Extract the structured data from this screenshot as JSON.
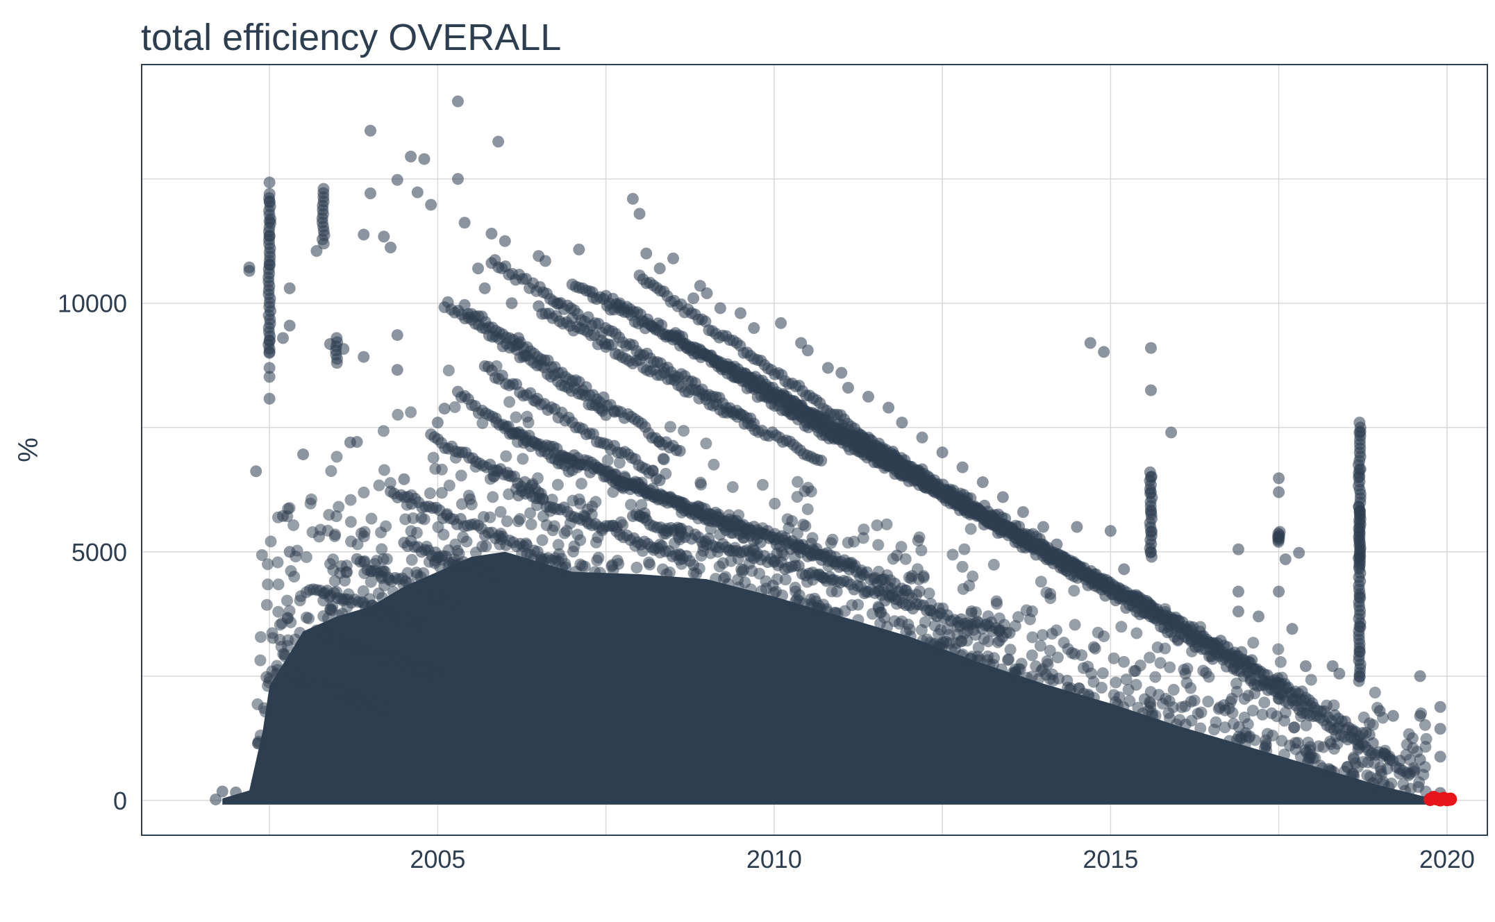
{
  "chart_data": {
    "type": "scatter",
    "title": "total efficiency OVERALL",
    "xlabel": "",
    "ylabel": "%",
    "x_ticks": [
      "2005",
      "2010",
      "2015",
      "2020"
    ],
    "y_ticks": [
      "0",
      "5000",
      "10000"
    ],
    "xlim": [
      2000.6,
      2020.6
    ],
    "ylim": [
      -700,
      14800
    ],
    "grid": true,
    "legend": "none",
    "colors": {
      "points": "#2d3e50",
      "highlight": "#e8141c",
      "grid": "#d9d9d9",
      "text": "#2d3e50"
    },
    "series": [
      {
        "values_note_excluded": true,
        "points": [
          [
            2001.7,
            20
          ],
          [
            2001.8,
            180
          ],
          [
            2002.0,
            160
          ],
          [
            2002.2,
            10650
          ],
          [
            2002.3,
            6620
          ],
          [
            2002.2,
            10720
          ],
          [
            2002.5,
            12430
          ],
          [
            2002.5,
            12050
          ],
          [
            2002.5,
            11650
          ],
          [
            2002.5,
            11350
          ],
          [
            2002.5,
            10780
          ],
          [
            2002.5,
            9240
          ],
          [
            2002.5,
            9020
          ],
          [
            2002.5,
            8700
          ],
          [
            2002.5,
            8520
          ],
          [
            2002.5,
            8080
          ],
          [
            2002.7,
            9300
          ],
          [
            2002.7,
            5720
          ],
          [
            2002.8,
            10300
          ],
          [
            2002.8,
            9550
          ],
          [
            2002.8,
            5000
          ],
          [
            2003.0,
            6960
          ],
          [
            2003.2,
            11050
          ],
          [
            2003.4,
            9180
          ],
          [
            2003.6,
            9080
          ],
          [
            2003.7,
            7200
          ],
          [
            2003.8,
            7210
          ],
          [
            2003.9,
            8920
          ],
          [
            2003.9,
            11380
          ],
          [
            2004.0,
            12210
          ],
          [
            2004.0,
            13470
          ],
          [
            2004.2,
            11340
          ],
          [
            2004.3,
            11120
          ],
          [
            2004.4,
            9360
          ],
          [
            2004.4,
            8660
          ],
          [
            2004.4,
            12480
          ],
          [
            2004.5,
            6460
          ],
          [
            2004.6,
            12950
          ],
          [
            2004.7,
            12230
          ],
          [
            2004.8,
            12900
          ],
          [
            2004.9,
            11980
          ],
          [
            2005.0,
            7600
          ],
          [
            2005.1,
            7880
          ],
          [
            2005.3,
            14060
          ],
          [
            2005.3,
            12500
          ],
          [
            2005.4,
            11620
          ],
          [
            2005.6,
            10700
          ],
          [
            2005.7,
            10300
          ],
          [
            2005.8,
            11400
          ],
          [
            2005.9,
            13250
          ],
          [
            2006.0,
            11250
          ],
          [
            2006.1,
            10000
          ],
          [
            2006.2,
            9300
          ],
          [
            2006.2,
            9180
          ],
          [
            2006.3,
            8950
          ],
          [
            2006.5,
            10950
          ],
          [
            2006.6,
            10850
          ],
          [
            2006.8,
            9990
          ],
          [
            2007.0,
            9700
          ],
          [
            2007.1,
            11080
          ],
          [
            2007.3,
            10220
          ],
          [
            2007.5,
            9120
          ],
          [
            2007.7,
            9960
          ],
          [
            2007.9,
            12100
          ],
          [
            2008.0,
            11800
          ],
          [
            2008.1,
            11000
          ],
          [
            2008.3,
            10700
          ],
          [
            2008.5,
            10900
          ],
          [
            2008.8,
            10100
          ],
          [
            2008.9,
            10350
          ],
          [
            2009.0,
            10200
          ],
          [
            2009.2,
            9900
          ],
          [
            2009.5,
            9800
          ],
          [
            2009.7,
            9500
          ],
          [
            2010.1,
            9600
          ],
          [
            2010.4,
            9200
          ],
          [
            2010.5,
            9050
          ],
          [
            2010.8,
            8700
          ],
          [
            2011.0,
            8600
          ],
          [
            2011.1,
            8300
          ],
          [
            2011.4,
            8120
          ],
          [
            2011.7,
            7900
          ],
          [
            2011.9,
            7600
          ],
          [
            2012.2,
            7300
          ],
          [
            2012.5,
            7000
          ],
          [
            2012.8,
            6700
          ],
          [
            2013.1,
            6400
          ],
          [
            2013.4,
            6100
          ],
          [
            2013.7,
            5800
          ],
          [
            2014.0,
            5500
          ],
          [
            2014.2,
            5150
          ],
          [
            2014.5,
            5500
          ],
          [
            2014.7,
            9200
          ],
          [
            2014.9,
            9020
          ],
          [
            2015.0,
            5420
          ],
          [
            2015.2,
            4650
          ],
          [
            2015.4,
            4100
          ],
          [
            2015.6,
            9100
          ],
          [
            2015.6,
            8250
          ],
          [
            2015.6,
            6500
          ],
          [
            2015.6,
            6200
          ],
          [
            2015.6,
            5800
          ],
          [
            2015.6,
            5400
          ],
          [
            2015.6,
            5000
          ],
          [
            2015.9,
            7400
          ],
          [
            2016.2,
            3200
          ],
          [
            2016.5,
            2900
          ],
          [
            2016.9,
            5050
          ],
          [
            2016.9,
            4200
          ],
          [
            2016.9,
            3800
          ],
          [
            2017.2,
            3700
          ],
          [
            2017.5,
            6480
          ],
          [
            2017.5,
            6200
          ],
          [
            2017.5,
            5300
          ],
          [
            2017.5,
            4200
          ],
          [
            2017.6,
            4850
          ],
          [
            2017.7,
            3450
          ],
          [
            2017.8,
            4980
          ],
          [
            2017.9,
            2700
          ],
          [
            2018.3,
            2700
          ],
          [
            2018.4,
            2550
          ],
          [
            2018.7,
            7600
          ],
          [
            2018.7,
            7400
          ],
          [
            2018.7,
            6650
          ],
          [
            2018.7,
            6520
          ],
          [
            2018.7,
            5800
          ],
          [
            2018.7,
            4900
          ],
          [
            2018.7,
            4100
          ],
          [
            2018.7,
            3500
          ],
          [
            2018.7,
            3000
          ],
          [
            2018.7,
            2500
          ],
          [
            2019.0,
            1800
          ],
          [
            2019.2,
            1700
          ],
          [
            2019.3,
            800
          ],
          [
            2019.6,
            2500
          ],
          [
            2019.6,
            1700
          ],
          [
            2019.6,
            820
          ],
          [
            2019.9,
            1880
          ],
          [
            2019.9,
            1440
          ],
          [
            2019.9,
            880
          ],
          [
            2019.9,
            150
          ]
        ],
        "band_edges": [
          [
            2001.8,
            40
          ],
          [
            2002.2,
            200
          ],
          [
            2002.4,
            1400
          ],
          [
            2002.5,
            2300
          ],
          [
            2003.0,
            3400
          ],
          [
            2003.5,
            3700
          ],
          [
            2004.0,
            3900
          ],
          [
            2004.5,
            4300
          ],
          [
            2005.0,
            4600
          ],
          [
            2005.5,
            4900
          ],
          [
            2006.0,
            5000
          ],
          [
            2006.5,
            4800
          ],
          [
            2007.0,
            4600
          ],
          [
            2008.0,
            4550
          ],
          [
            2009.0,
            4450
          ],
          [
            2010.0,
            4100
          ],
          [
            2011.0,
            3700
          ],
          [
            2012.0,
            3300
          ],
          [
            2013.0,
            2800
          ],
          [
            2014.0,
            2350
          ],
          [
            2015.0,
            1950
          ],
          [
            2016.0,
            1500
          ],
          [
            2017.0,
            1100
          ],
          [
            2018.0,
            700
          ],
          [
            2019.0,
            300
          ],
          [
            2019.6,
            100
          ],
          [
            2019.8,
            30
          ]
        ],
        "diagonal_streaks": [
          [
            2005.1,
            10000,
            2007.5,
            7800
          ],
          [
            2005.4,
            9900,
            2008.6,
            7000
          ],
          [
            2005.8,
            10850,
            2009.7,
            7600
          ],
          [
            2006.5,
            9900,
            2010.7,
            6800
          ],
          [
            2007.0,
            10350,
            2011.6,
            7000
          ],
          [
            2007.5,
            10100,
            2012.2,
            6600
          ],
          [
            2008.0,
            10500,
            2013.0,
            5800
          ],
          [
            2008.5,
            9300,
            2014.0,
            5200
          ],
          [
            2009.1,
            8800,
            2015.0,
            4300
          ],
          [
            2009.6,
            8300,
            2016.0,
            3600
          ],
          [
            2010.2,
            7800,
            2017.1,
            2800
          ],
          [
            2010.9,
            7400,
            2018.0,
            2000
          ],
          [
            2011.7,
            6800,
            2018.9,
            1200
          ],
          [
            2012.4,
            6200,
            2019.4,
            600
          ],
          [
            2006.0,
            7500,
            2009.8,
            5200
          ],
          [
            2006.8,
            6900,
            2011.2,
            4700
          ],
          [
            2007.5,
            6500,
            2012.0,
            4200
          ],
          [
            2004.3,
            6200,
            2006.9,
            4700
          ],
          [
            2004.5,
            5200,
            2006.0,
            4400
          ],
          [
            2003.8,
            4800,
            2005.3,
            3900
          ],
          [
            2003.1,
            4300,
            2004.8,
            3500
          ],
          [
            2005.3,
            8150,
            2007.0,
            6600
          ],
          [
            2005.7,
            8700,
            2008.3,
            6500
          ],
          [
            2004.9,
            7300,
            2006.5,
            6200
          ],
          [
            2006.2,
            6200,
            2008.8,
            4800
          ],
          [
            2007.9,
            5700,
            2013.5,
            3300
          ],
          [
            2002.8,
            2500,
            2004.3,
            1800
          ],
          [
            2003.2,
            3400,
            2005.0,
            2500
          ]
        ],
        "vertical_streaks": [
          [
            2002.5,
            9000,
            12200
          ],
          [
            2003.3,
            11200,
            12300
          ],
          [
            2003.5,
            8800,
            9300
          ],
          [
            2015.6,
            4900,
            6600
          ],
          [
            2017.5,
            5200,
            5400
          ],
          [
            2018.7,
            2400,
            7500
          ],
          [
            2018.7,
            4700,
            5900
          ]
        ]
      },
      {
        "highlighted": true,
        "points": [
          [
            2019.75,
            20
          ],
          [
            2019.8,
            60
          ],
          [
            2019.85,
            30
          ],
          [
            2019.9,
            10
          ],
          [
            2019.95,
            40
          ],
          [
            2020.0,
            15
          ],
          [
            2020.05,
            25
          ]
        ]
      }
    ]
  }
}
